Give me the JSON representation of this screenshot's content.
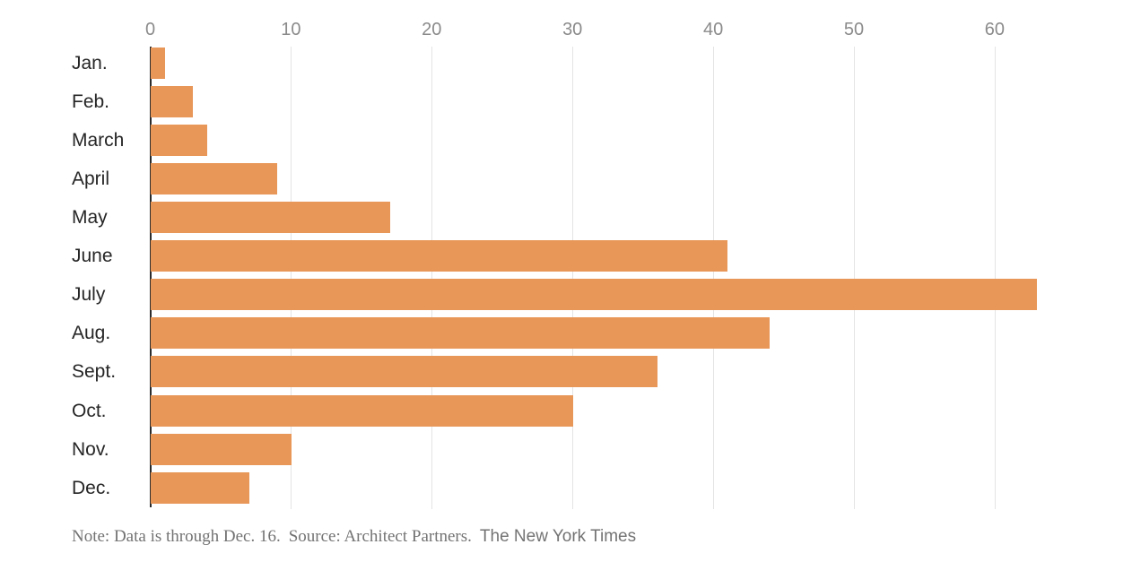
{
  "chart_data": {
    "type": "bar",
    "orientation": "horizontal",
    "title": "",
    "categories": [
      "Jan.",
      "Feb.",
      "March",
      "April",
      "May",
      "June",
      "July",
      "Aug.",
      "Sept.",
      "Oct.",
      "Nov.",
      "Dec."
    ],
    "values": [
      1,
      3,
      4,
      9,
      17,
      41,
      63,
      44,
      36,
      30,
      10,
      7
    ],
    "x_ticks": [
      0,
      10,
      20,
      30,
      40,
      50,
      60
    ],
    "xlim": [
      0,
      69.7
    ],
    "grid": "vertical-light-gray",
    "legend": "none",
    "bar_color": "#e89758",
    "axis_line_color": "#2b2b2b",
    "gridline_color": "#e4e4e4",
    "tick_label_color": "#8b8b8b",
    "category_label_color": "#262626"
  },
  "note": {
    "text": "Note: Data is through Dec. 16.",
    "source": "Source: Architect Partners.",
    "credit": "The New York Times",
    "color": "#737373"
  }
}
